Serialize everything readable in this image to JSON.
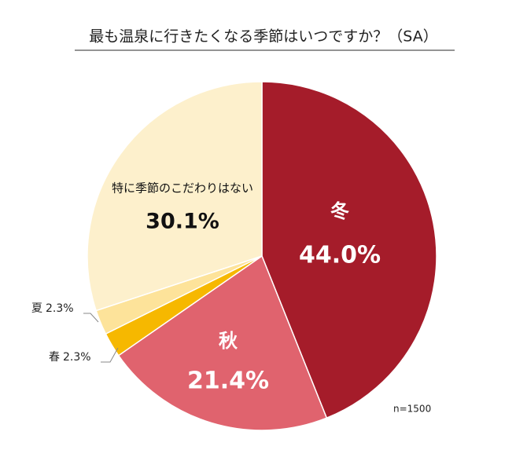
{
  "chart_data": {
    "type": "pie",
    "title": "最も温泉に行きたくなる季節はいつですか？（SA）",
    "categories": [
      "冬",
      "秋",
      "春",
      "夏",
      "特に季節のこだわりはない"
    ],
    "values": [
      44.0,
      21.4,
      2.3,
      2.3,
      30.1
    ],
    "value_labels": [
      "44.0%",
      "21.4%",
      "2.3%",
      "2.3%",
      "30.1%"
    ],
    "colors": [
      "#a51c2a",
      "#e0636e",
      "#f6b800",
      "#fde39a",
      "#fdf0cc"
    ],
    "annotation": "n=1500"
  }
}
